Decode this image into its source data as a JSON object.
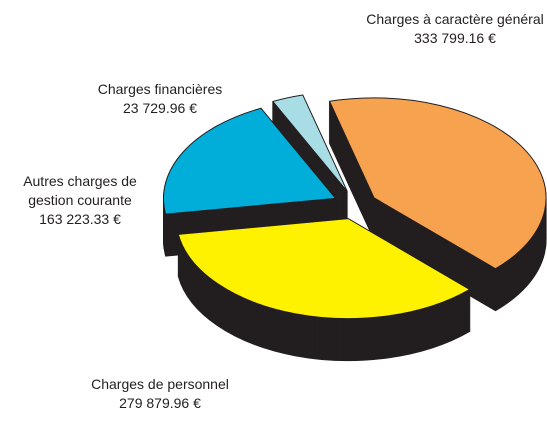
{
  "chart_data": {
    "type": "pie",
    "categories": [
      "Charges à caractère général",
      "Charges de personnel",
      "Autres charges de gestion courante",
      "Charges financières"
    ],
    "values": [
      333799.16,
      279879.96,
      163223.33,
      23729.96
    ],
    "value_labels": [
      "333 799.16 €",
      "279 879.96 €",
      "163 223.33 €",
      "23 729.96 €"
    ],
    "colors": [
      "#f7a24f",
      "#fff200",
      "#00aed9",
      "#a9dde6"
    ]
  }
}
